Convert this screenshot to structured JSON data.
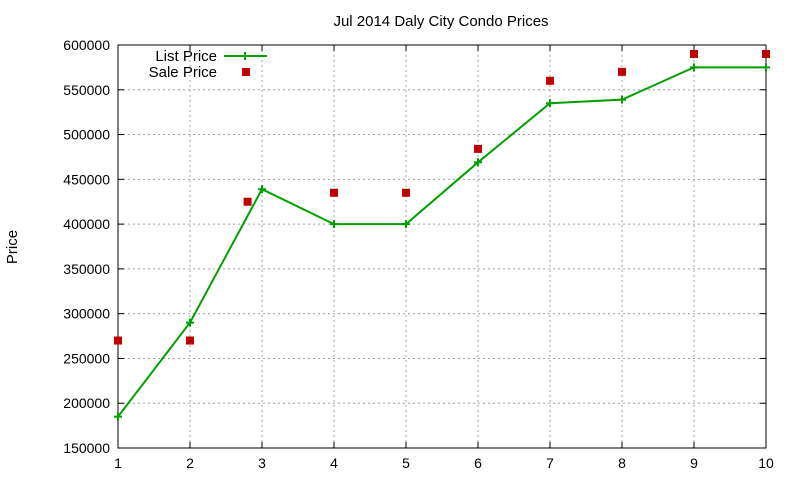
{
  "chart_data": {
    "type": "line",
    "title": "Jul 2014 Daly City Condo Prices",
    "xlabel": "",
    "ylabel": "Price",
    "x": [
      1,
      2,
      3,
      4,
      5,
      6,
      7,
      8,
      9,
      10
    ],
    "xlim": [
      1,
      10
    ],
    "ylim": [
      150000,
      600000
    ],
    "xticks": [
      1,
      2,
      3,
      4,
      5,
      6,
      7,
      8,
      9,
      10
    ],
    "yticks": [
      150000,
      200000,
      250000,
      300000,
      350000,
      400000,
      450000,
      500000,
      550000,
      600000
    ],
    "grid": true,
    "legend_position": "top-left",
    "series": [
      {
        "name": "List Price",
        "style": "line-with-plus-markers",
        "color": "#00a000",
        "x": [
          1,
          2,
          3,
          4,
          5,
          6,
          7,
          8,
          9,
          10
        ],
        "values": [
          185000,
          290000,
          439000,
          400000,
          400000,
          469000,
          535000,
          539000,
          575000,
          575000
        ]
      },
      {
        "name": "Sale Price",
        "style": "square-markers",
        "color": "#c00000",
        "x": [
          1,
          2,
          2.8,
          4,
          5,
          6,
          7,
          8,
          9,
          10
        ],
        "values": [
          270000,
          270000,
          425000,
          435000,
          435000,
          484000,
          560000,
          570000,
          590000,
          590000
        ]
      }
    ]
  }
}
